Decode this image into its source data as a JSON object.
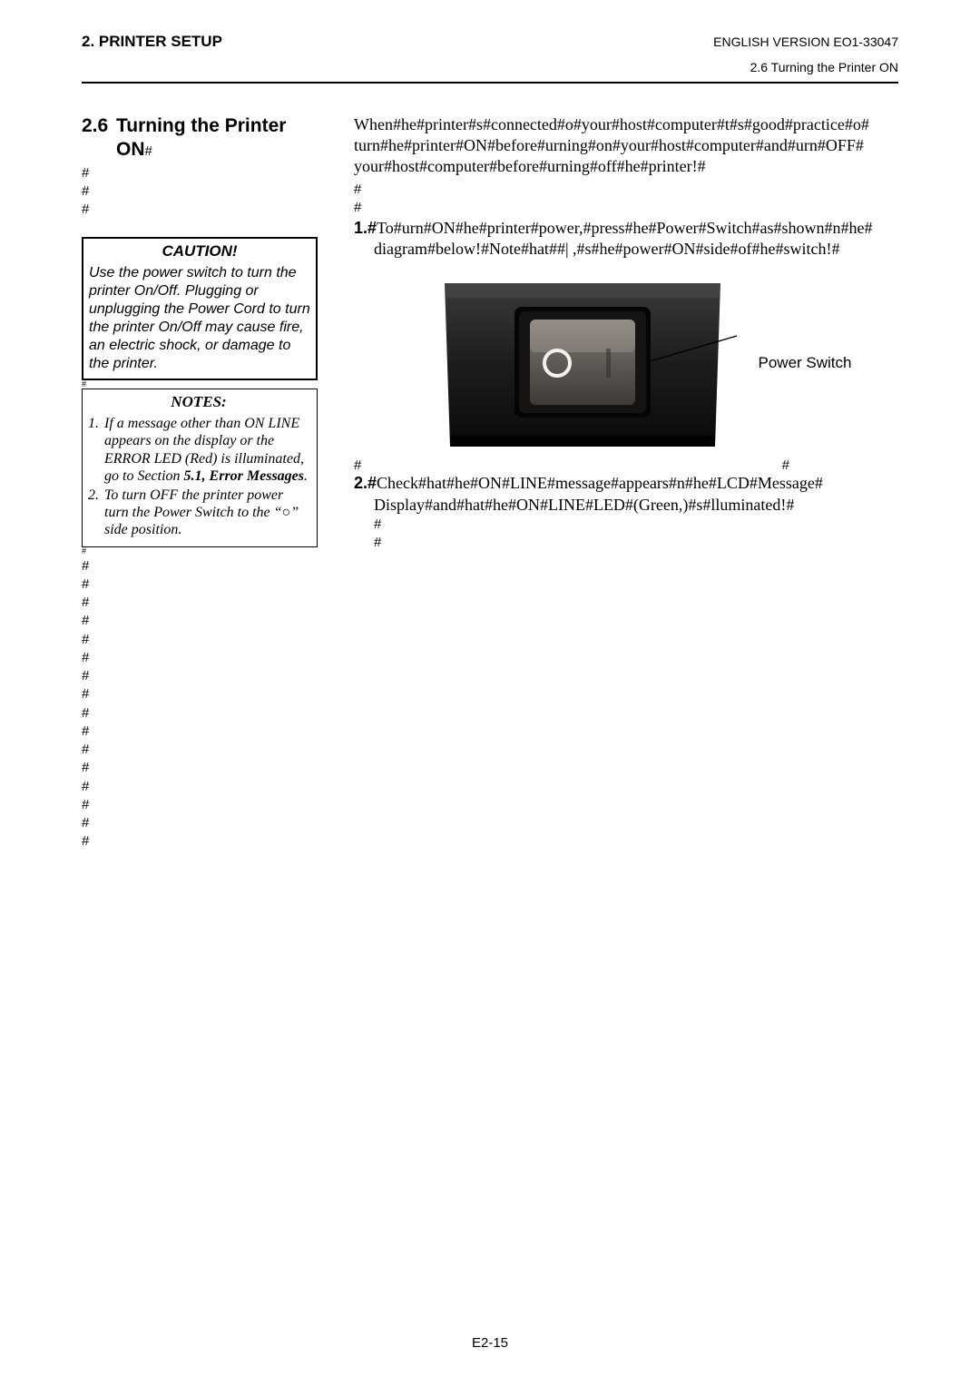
{
  "header": {
    "left": "2. PRINTER SETUP",
    "right": "ENGLISH VERSION EO1-33047",
    "sub_right": "2.6 Turning the Printer ON"
  },
  "section": {
    "number": "2.6",
    "title_line1": "Turning the Printer",
    "title_line2": "ON",
    "title_hash": "#"
  },
  "left_hashes_top": [
    "#",
    "#",
    "#"
  ],
  "caution": {
    "title": "CAUTION!",
    "body": "Use the power switch to turn the printer On/Off.  Plugging or unplugging the Power Cord to turn the printer On/Off may cause fire, an electric shock, or damage to the printer."
  },
  "between_hash": "#",
  "notes": {
    "title": "NOTES:",
    "items": [
      {
        "num": "1.",
        "text_pre": "If a message other than ON LINE appears on the display or the ERROR LED (Red) is illuminated, go to Section ",
        "bold1": "5.1, Error Messages",
        "text_post": "."
      },
      {
        "num": "2.",
        "text_pre": "To turn OFF the printer power turn the Power Switch to the “",
        "symbol": "○",
        "text_post": "” side position."
      }
    ]
  },
  "left_hashes_bottom": [
    "#",
    "#",
    "#",
    "#",
    "#",
    "#",
    "#",
    "#",
    "#",
    "#",
    "#",
    "#",
    "#",
    "#",
    "#",
    "#"
  ],
  "intro_para": "When#he#printer#s#connected#o#your#host#computer#t#s#good#practice#o# turn#he#printer#ON#before#urning#on#your#host#computer#and#urn#OFF# your#host#computer#before#urning#off#he#printer!#",
  "right_hashes_mid": [
    "#",
    "#"
  ],
  "step1": {
    "num": "1.#",
    "text": "To#urn#ON#he#printer#power,#press#he#Power#Switch#as#shown#n#he# diagram#below!#Note#hat##| ,#s#he#power#ON#side#of#he#switch!#"
  },
  "figure": {
    "label": "Power Switch",
    "colors": {
      "bg_dark": "#1a1a1a",
      "bg_mid": "#2b2b2b",
      "panel": "#0d0d0d",
      "rocker": "#565350",
      "rocker_hi": "#7a7670",
      "circle": "#f5f4f0",
      "line": "#000000"
    }
  },
  "fig_hash_left": "#",
  "fig_hash_right": "#",
  "step2": {
    "num": "2.#",
    "text": "Check#hat#he#ON#LINE#message#appears#n#he#LCD#Message# Display#and#hat#he#ON#LINE#LED#(Green,)#s#lluminated!#"
  },
  "trail_hashes": [
    "#",
    "#"
  ],
  "footer": "E2-15"
}
